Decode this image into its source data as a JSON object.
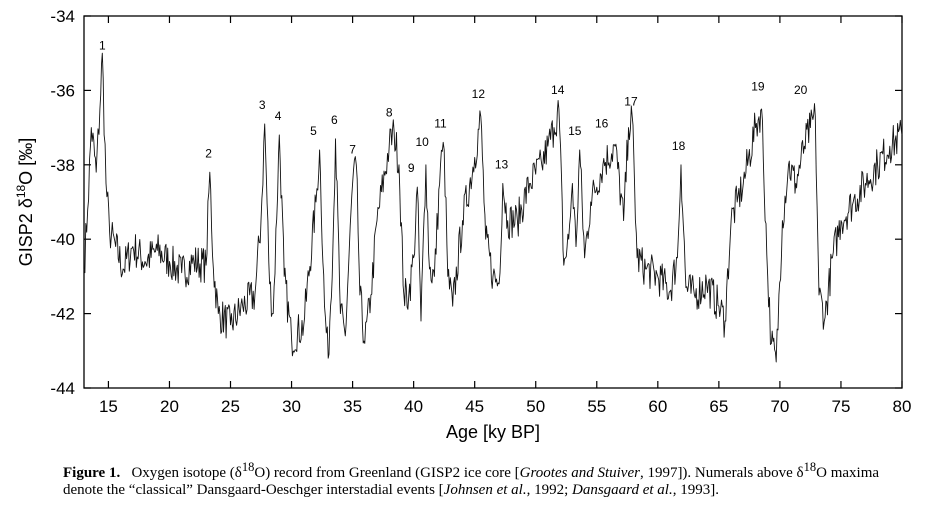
{
  "chart_data": {
    "type": "line",
    "title": "",
    "xlabel": "Age [ky BP]",
    "ylabel_main": "GISP2 δ",
    "ylabel_sup": "18",
    "ylabel_tail": "O [‰]",
    "xlim": [
      13,
      80
    ],
    "ylim": [
      -44,
      -34
    ],
    "xticks": [
      15,
      20,
      25,
      30,
      35,
      40,
      45,
      50,
      55,
      60,
      65,
      70,
      75,
      80
    ],
    "yticks": [
      -34,
      -36,
      -38,
      -40,
      -42,
      -44
    ],
    "anchors": [
      [
        13.0,
        -40.8
      ],
      [
        13.3,
        -39.2
      ],
      [
        13.6,
        -37.0
      ],
      [
        14.0,
        -38.2
      ],
      [
        14.3,
        -36.5
      ],
      [
        14.5,
        -35.0
      ],
      [
        14.8,
        -38.5
      ],
      [
        15.1,
        -39.8
      ],
      [
        15.6,
        -40.2
      ],
      [
        16.2,
        -40.8
      ],
      [
        17.0,
        -40.2
      ],
      [
        18.0,
        -40.6
      ],
      [
        19.0,
        -40.3
      ],
      [
        20.0,
        -40.6
      ],
      [
        21.0,
        -40.9
      ],
      [
        22.0,
        -40.6
      ],
      [
        23.0,
        -40.7
      ],
      [
        23.3,
        -38.2
      ],
      [
        23.6,
        -40.8
      ],
      [
        24.0,
        -42.0
      ],
      [
        25.0,
        -42.3
      ],
      [
        26.0,
        -41.8
      ],
      [
        27.0,
        -41.5
      ],
      [
        27.5,
        -39.5
      ],
      [
        27.8,
        -36.9
      ],
      [
        28.2,
        -41.2
      ],
      [
        28.5,
        -42.0
      ],
      [
        29.0,
        -37.2
      ],
      [
        29.4,
        -41.0
      ],
      [
        30.0,
        -42.7
      ],
      [
        31.0,
        -42.3
      ],
      [
        32.0,
        -39.0
      ],
      [
        32.3,
        -37.6
      ],
      [
        32.7,
        -41.8
      ],
      [
        33.0,
        -43.2
      ],
      [
        33.4,
        -40.0
      ],
      [
        33.6,
        -37.3
      ],
      [
        34.0,
        -42.0
      ],
      [
        34.4,
        -42.6
      ],
      [
        35.0,
        -38.5
      ],
      [
        35.3,
        -38.0
      ],
      [
        35.6,
        -41.5
      ],
      [
        36.0,
        -42.8
      ],
      [
        36.5,
        -41.5
      ],
      [
        37.0,
        -39.5
      ],
      [
        38.0,
        -37.5
      ],
      [
        38.4,
        -37.1
      ],
      [
        38.8,
        -38.0
      ],
      [
        39.2,
        -41.5
      ],
      [
        39.6,
        -41.5
      ],
      [
        40.0,
        -40.5
      ],
      [
        40.3,
        -38.6
      ],
      [
        40.6,
        -42.2
      ],
      [
        41.0,
        -38.0
      ],
      [
        41.3,
        -40.8
      ],
      [
        41.7,
        -41.0
      ],
      [
        42.2,
        -38.0
      ],
      [
        42.5,
        -37.6
      ],
      [
        42.8,
        -41.0
      ],
      [
        43.2,
        -41.8
      ],
      [
        44.0,
        -39.5
      ],
      [
        45.0,
        -37.8
      ],
      [
        45.5,
        -36.7
      ],
      [
        45.9,
        -40.0
      ],
      [
        46.5,
        -41.0
      ],
      [
        47.0,
        -41.2
      ],
      [
        47.3,
        -38.5
      ],
      [
        47.7,
        -39.5
      ],
      [
        48.5,
        -39.5
      ],
      [
        49.5,
        -38.5
      ],
      [
        50.5,
        -38.0
      ],
      [
        51.0,
        -37.5
      ],
      [
        51.5,
        -37.0
      ],
      [
        51.9,
        -36.5
      ],
      [
        52.3,
        -40.7
      ],
      [
        52.7,
        -40.0
      ],
      [
        53.0,
        -38.5
      ],
      [
        53.3,
        -40.2
      ],
      [
        53.6,
        -37.6
      ],
      [
        54.0,
        -40.5
      ],
      [
        54.5,
        -39.0
      ],
      [
        55.5,
        -38.0
      ],
      [
        56.5,
        -37.5
      ],
      [
        57.2,
        -39.5
      ],
      [
        57.6,
        -37.0
      ],
      [
        57.9,
        -36.7
      ],
      [
        58.3,
        -40.5
      ],
      [
        59.0,
        -40.8
      ],
      [
        60.0,
        -41.0
      ],
      [
        61.0,
        -41.4
      ],
      [
        61.6,
        -40.5
      ],
      [
        61.9,
        -38.0
      ],
      [
        62.3,
        -41.3
      ],
      [
        63.0,
        -41.5
      ],
      [
        64.0,
        -41.2
      ],
      [
        65.0,
        -41.8
      ],
      [
        65.5,
        -42.2
      ],
      [
        66.0,
        -39.5
      ],
      [
        66.5,
        -39.0
      ],
      [
        67.0,
        -38.5
      ],
      [
        68.0,
        -37.0
      ],
      [
        68.5,
        -36.5
      ],
      [
        69.0,
        -41.0
      ],
      [
        69.3,
        -42.8
      ],
      [
        69.7,
        -43.3
      ],
      [
        70.2,
        -39.5
      ],
      [
        70.7,
        -38.0
      ],
      [
        71.3,
        -38.5
      ],
      [
        72.0,
        -37.5
      ],
      [
        72.5,
        -37.0
      ],
      [
        72.9,
        -36.7
      ],
      [
        73.2,
        -41.5
      ],
      [
        73.7,
        -42.1
      ],
      [
        74.3,
        -40.5
      ],
      [
        75.0,
        -39.5
      ],
      [
        76.0,
        -39.0
      ],
      [
        77.0,
        -38.5
      ],
      [
        78.0,
        -38.0
      ],
      [
        79.0,
        -37.5
      ],
      [
        80.0,
        -37.2
      ]
    ],
    "events": [
      {
        "label": "1",
        "x": 14.5,
        "y": -34.9
      },
      {
        "label": "2",
        "x": 23.2,
        "y": -37.8
      },
      {
        "label": "3",
        "x": 27.6,
        "y": -36.5
      },
      {
        "label": "4",
        "x": 28.9,
        "y": -36.8
      },
      {
        "label": "5",
        "x": 31.8,
        "y": -37.2
      },
      {
        "label": "6",
        "x": 33.5,
        "y": -36.9
      },
      {
        "label": "7",
        "x": 35.0,
        "y": -37.7
      },
      {
        "label": "8",
        "x": 38.0,
        "y": -36.7
      },
      {
        "label": "9",
        "x": 39.8,
        "y": -38.2
      },
      {
        "label": "10",
        "x": 40.7,
        "y": -37.5
      },
      {
        "label": "11",
        "x": 42.2,
        "y": -37.0
      },
      {
        "label": "12",
        "x": 45.3,
        "y": -36.2
      },
      {
        "label": "13",
        "x": 47.2,
        "y": -38.1
      },
      {
        "label": "14",
        "x": 51.8,
        "y": -36.1
      },
      {
        "label": "15",
        "x": 53.2,
        "y": -37.2
      },
      {
        "label": "16",
        "x": 55.4,
        "y": -37.0
      },
      {
        "label": "17",
        "x": 57.8,
        "y": -36.4
      },
      {
        "label": "18",
        "x": 61.7,
        "y": -37.6
      },
      {
        "label": "19",
        "x": 68.2,
        "y": -36.0
      },
      {
        "label": "20",
        "x": 71.7,
        "y": -36.1
      }
    ]
  },
  "caption": {
    "figure_label": "Figure 1.",
    "text_1": "Oxygen isotope (δ",
    "sup_1": "18",
    "text_2": "O) record from Greenland (GISP2 ice core [",
    "cite_1": "Grootes and Stuiver",
    "text_3": ", 1997]). Numerals above δ",
    "sup_2": "18",
    "text_4": "O maxima denote the “classical” Dansgaard-Oeschger interstadial events [",
    "cite_2": "Johnsen et al.",
    "text_5": ", 1992; ",
    "cite_3": "Dansgaard et al.",
    "text_6": ", 1993]."
  }
}
